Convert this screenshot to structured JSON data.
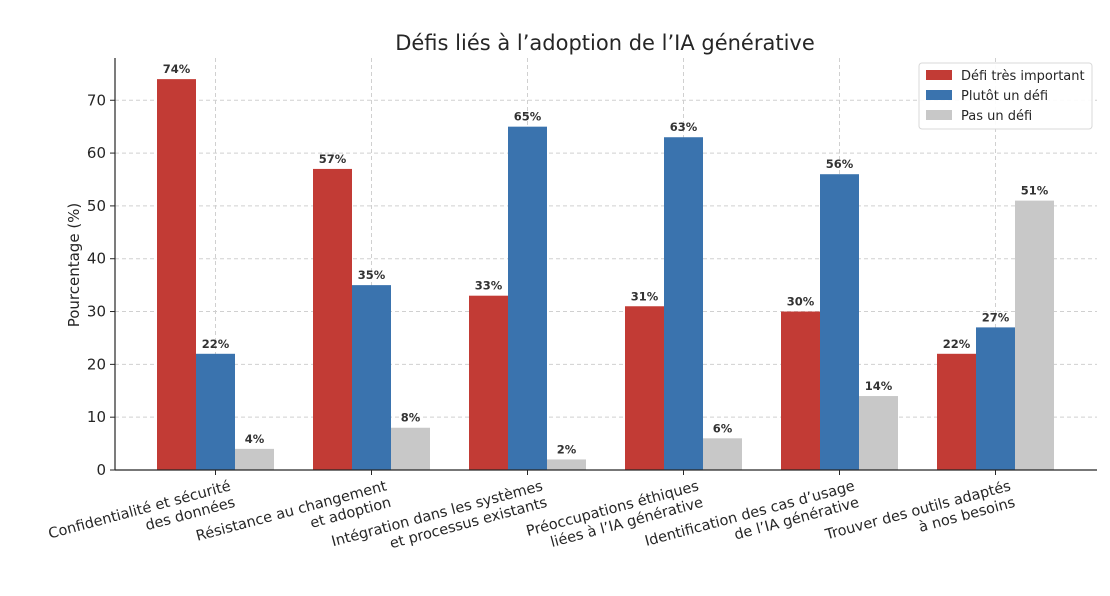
{
  "chart_data": {
    "type": "bar",
    "title": "Défis liés à l’adoption de l’IA générative",
    "xlabel": "",
    "ylabel": "Pourcentage (%)",
    "ylim": [
      0,
      78
    ],
    "yticks": [
      0,
      10,
      20,
      30,
      40,
      50,
      60,
      70
    ],
    "grid": true,
    "legend_position": "top-right",
    "categories": [
      [
        "Confidentialité et sécurité",
        "des données"
      ],
      [
        "Résistance au changement",
        "et adoption"
      ],
      [
        "Intégration dans les systèmes",
        "et processus existants"
      ],
      [
        "Préoccupations éthiques",
        "liées à l’IA générative"
      ],
      [
        "Identification des cas d’usage",
        "de l’IA générative"
      ],
      [
        "Trouver des outils adaptés",
        "à nos besoins"
      ]
    ],
    "series": [
      {
        "name": "Défi très important",
        "color": "#c23b35",
        "values": [
          74,
          57,
          33,
          31,
          30,
          22
        ]
      },
      {
        "name": "Plutôt un défi",
        "color": "#3a73ae",
        "values": [
          22,
          35,
          65,
          63,
          56,
          27
        ]
      },
      {
        "name": "Pas un défi",
        "color": "#c8c8c8",
        "values": [
          4,
          8,
          2,
          6,
          14,
          51
        ]
      }
    ],
    "value_suffix": "%"
  }
}
